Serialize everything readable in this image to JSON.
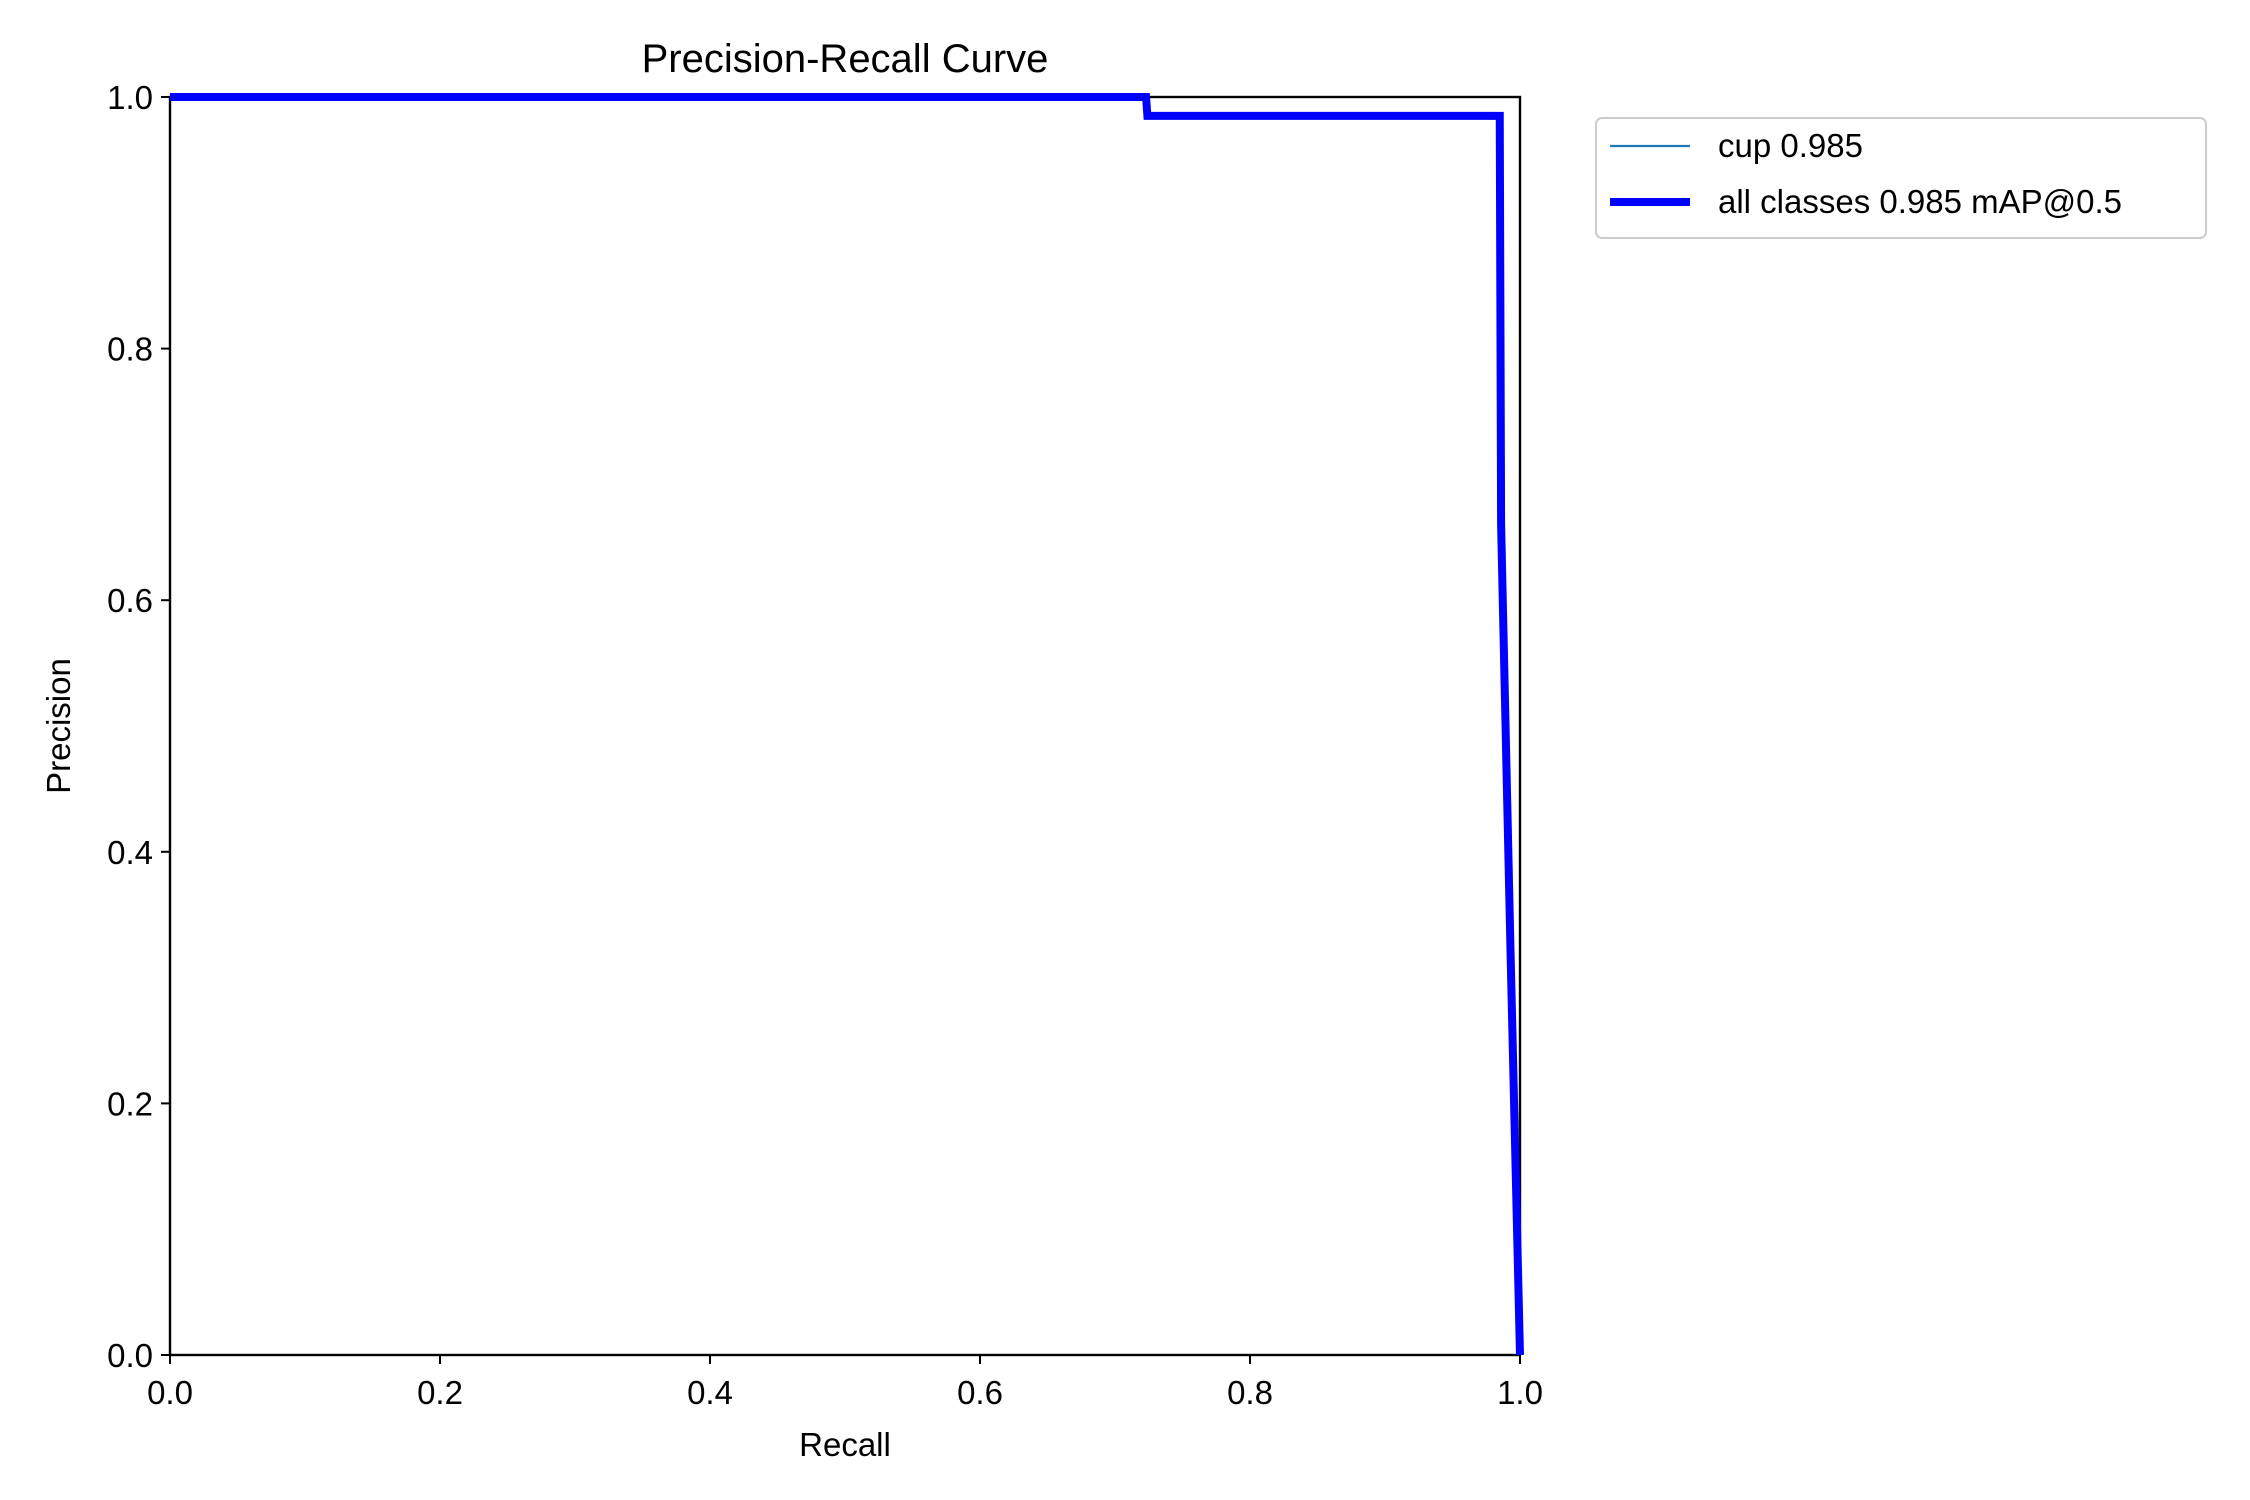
{
  "chart_data": {
    "type": "line",
    "title": "Precision-Recall Curve",
    "xlabel": "Recall",
    "ylabel": "Precision",
    "xlim": [
      0.0,
      1.0
    ],
    "ylim": [
      0.0,
      1.0
    ],
    "xticks": [
      "0.0",
      "0.2",
      "0.4",
      "0.6",
      "0.8",
      "1.0"
    ],
    "yticks": [
      "0.0",
      "0.2",
      "0.4",
      "0.6",
      "0.8",
      "1.0"
    ],
    "grid": false,
    "legend_position": "outside-top-right",
    "series": [
      {
        "name": "cup 0.985",
        "color": "#1f77b4",
        "width": "thin",
        "x": [
          0.0,
          0.723,
          0.724,
          0.985,
          0.986,
          0.993,
          1.0
        ],
        "y": [
          1.0,
          1.0,
          0.985,
          0.985,
          0.66,
          0.32,
          0.0
        ]
      },
      {
        "name": "all classes 0.985 mAP@0.5",
        "color": "#0000ff",
        "width": "thick",
        "x": [
          0.0,
          0.723,
          0.724,
          0.985,
          0.986,
          0.993,
          1.0
        ],
        "y": [
          1.0,
          1.0,
          0.985,
          0.985,
          0.66,
          0.32,
          0.0
        ]
      }
    ]
  }
}
